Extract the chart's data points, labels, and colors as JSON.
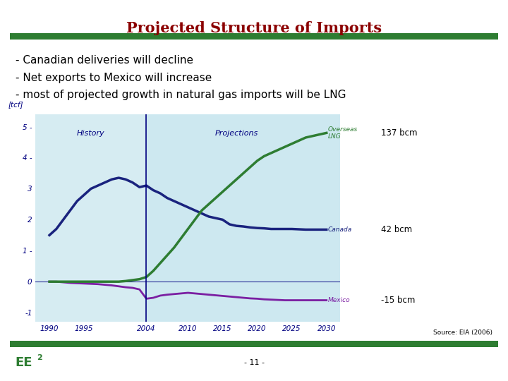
{
  "title": "Projected Structure of Imports",
  "title_color": "#8B0000",
  "title_fontsize": 15,
  "bullet_lines": [
    "- Canadian deliveries will decline",
    "- Net exports to Mexico will increase",
    "- most of projected growth in natural gas imports will be LNG"
  ],
  "bullet_fontsize": 11,
  "green_bar_color": "#2E7D32",
  "chart_bg": "#cde8f0",
  "history_label": "History",
  "projections_label": "Projections",
  "divider_x": 2004,
  "xlabel_vals": [
    1990,
    1995,
    2004,
    2010,
    2015,
    2020,
    2025,
    2030
  ],
  "ylim": [
    -1.3,
    5.4
  ],
  "xlim": [
    1988,
    2032
  ],
  "yticks": [
    -1,
    0,
    1,
    2,
    3,
    4,
    5
  ],
  "ytick_labels": [
    "-1",
    "0",
    "1 -",
    "2",
    "3",
    "4 -",
    "5 -"
  ],
  "ylabel": "[tcf]",
  "source_text": "Source: EIA (2006)",
  "footer_left": "EE",
  "footer_sup": "2",
  "footer_center": "- 11 -",
  "canada_color": "#1A237E",
  "mexico_color": "#7B1FA2",
  "lng_color": "#2E7D32",
  "canada_x": [
    1990,
    1991,
    1992,
    1993,
    1994,
    1995,
    1996,
    1997,
    1998,
    1999,
    2000,
    2001,
    2002,
    2003,
    2004,
    2005,
    2006,
    2007,
    2008,
    2009,
    2010,
    2011,
    2012,
    2013,
    2014,
    2015,
    2016,
    2017,
    2018,
    2019,
    2020,
    2021,
    2022,
    2023,
    2024,
    2025,
    2026,
    2027,
    2028,
    2029,
    2030
  ],
  "canada_y": [
    1.5,
    1.7,
    2.0,
    2.3,
    2.6,
    2.8,
    3.0,
    3.1,
    3.2,
    3.3,
    3.35,
    3.3,
    3.2,
    3.05,
    3.1,
    2.95,
    2.85,
    2.7,
    2.6,
    2.5,
    2.4,
    2.3,
    2.2,
    2.1,
    2.05,
    2.0,
    1.85,
    1.8,
    1.78,
    1.75,
    1.73,
    1.72,
    1.7,
    1.7,
    1.7,
    1.7,
    1.69,
    1.68,
    1.68,
    1.68,
    1.68
  ],
  "mexico_x": [
    1990,
    1991,
    1992,
    1993,
    1994,
    1995,
    1996,
    1997,
    1998,
    1999,
    2000,
    2001,
    2002,
    2003,
    2004,
    2005,
    2006,
    2007,
    2008,
    2009,
    2010,
    2011,
    2012,
    2013,
    2014,
    2015,
    2016,
    2017,
    2018,
    2019,
    2020,
    2021,
    2022,
    2023,
    2024,
    2025,
    2026,
    2027,
    2028,
    2029,
    2030
  ],
  "mexico_y": [
    0.0,
    0.0,
    -0.02,
    -0.04,
    -0.05,
    -0.06,
    -0.07,
    -0.08,
    -0.1,
    -0.12,
    -0.15,
    -0.18,
    -0.2,
    -0.25,
    -0.55,
    -0.52,
    -0.45,
    -0.42,
    -0.4,
    -0.38,
    -0.36,
    -0.38,
    -0.4,
    -0.42,
    -0.44,
    -0.46,
    -0.48,
    -0.5,
    -0.52,
    -0.54,
    -0.55,
    -0.57,
    -0.58,
    -0.59,
    -0.6,
    -0.6,
    -0.6,
    -0.6,
    -0.6,
    -0.6,
    -0.6
  ],
  "lng_x": [
    1990,
    1991,
    1992,
    1993,
    1994,
    1995,
    1996,
    1997,
    1998,
    1999,
    2000,
    2001,
    2002,
    2003,
    2004,
    2005,
    2006,
    2007,
    2008,
    2009,
    2010,
    2011,
    2012,
    2013,
    2014,
    2015,
    2016,
    2017,
    2018,
    2019,
    2020,
    2021,
    2022,
    2023,
    2024,
    2025,
    2026,
    2027,
    2028,
    2029,
    2030
  ],
  "lng_y": [
    0.0,
    0.0,
    0.0,
    0.0,
    0.0,
    0.0,
    0.0,
    0.0,
    0.0,
    0.0,
    0.0,
    0.02,
    0.05,
    0.08,
    0.15,
    0.35,
    0.6,
    0.85,
    1.1,
    1.4,
    1.7,
    2.0,
    2.3,
    2.5,
    2.7,
    2.9,
    3.1,
    3.3,
    3.5,
    3.7,
    3.9,
    4.05,
    4.15,
    4.25,
    4.35,
    4.45,
    4.55,
    4.65,
    4.7,
    4.75,
    4.8
  ]
}
